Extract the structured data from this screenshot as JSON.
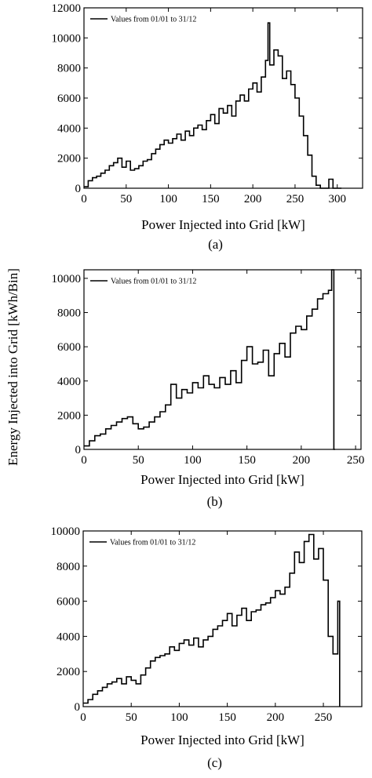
{
  "figure": {
    "ylabel": "Energy Injected into Grid [kWh/Bin]"
  },
  "chart_data": [
    {
      "type": "line",
      "panel": "(a)",
      "caption": "(a)",
      "xlabel": "Power Injected into Grid [kW]",
      "ylabel": "Energy Injected into Grid [kWh/Bin]",
      "legend": "Values from 01/01 to 31/12",
      "legend_position": "top-left",
      "grid": false,
      "xlim": [
        0,
        330
      ],
      "ylim": [
        0,
        12000
      ],
      "xticks": [
        0,
        50,
        100,
        150,
        200,
        250,
        300
      ],
      "yticks": [
        0,
        2000,
        4000,
        6000,
        8000,
        10000,
        12000
      ],
      "x": [
        0,
        5,
        10,
        15,
        20,
        25,
        30,
        35,
        40,
        45,
        50,
        55,
        60,
        65,
        70,
        75,
        80,
        85,
        90,
        95,
        100,
        105,
        110,
        115,
        120,
        125,
        130,
        135,
        140,
        145,
        150,
        155,
        160,
        165,
        170,
        175,
        180,
        185,
        190,
        195,
        200,
        205,
        210,
        215,
        218,
        220,
        225,
        230,
        235,
        240,
        245,
        250,
        255,
        260,
        265,
        270,
        275,
        280,
        285,
        290,
        295,
        300,
        305
      ],
      "values": [
        100,
        500,
        700,
        800,
        1000,
        1200,
        1500,
        1700,
        2000,
        1400,
        1800,
        1200,
        1300,
        1500,
        1800,
        1900,
        2300,
        2600,
        2900,
        3200,
        3000,
        3300,
        3600,
        3200,
        3800,
        3500,
        4000,
        4200,
        3900,
        4500,
        4900,
        4300,
        5300,
        5000,
        5500,
        4800,
        5800,
        6200,
        5800,
        6600,
        7000,
        6400,
        7400,
        8500,
        11000,
        8200,
        9200,
        8800,
        7300,
        7800,
        6900,
        6000,
        4800,
        3500,
        2200,
        800,
        200,
        0,
        0,
        600,
        0,
        0,
        0
      ]
    },
    {
      "type": "line",
      "panel": "(b)",
      "caption": "(b)",
      "xlabel": "Power Injected into Grid [kW]",
      "ylabel": "Energy Injected into Grid [kWh/Bin]",
      "legend": "Values from 01/01 to 31/12",
      "legend_position": "top-left",
      "grid": false,
      "xlim": [
        0,
        255
      ],
      "ylim": [
        0,
        10500
      ],
      "xticks": [
        0,
        50,
        100,
        150,
        200,
        250
      ],
      "yticks": [
        0,
        2000,
        4000,
        6000,
        8000,
        10000
      ],
      "x": [
        0,
        5,
        10,
        15,
        20,
        25,
        30,
        35,
        40,
        45,
        50,
        55,
        60,
        65,
        70,
        75,
        80,
        85,
        90,
        95,
        100,
        105,
        110,
        115,
        120,
        125,
        130,
        135,
        140,
        145,
        150,
        155,
        160,
        165,
        170,
        175,
        180,
        185,
        190,
        195,
        200,
        205,
        210,
        215,
        220,
        225,
        228,
        230,
        231
      ],
      "values": [
        200,
        500,
        800,
        900,
        1200,
        1400,
        1600,
        1800,
        1900,
        1500,
        1200,
        1300,
        1600,
        1900,
        2200,
        2600,
        3800,
        3000,
        3500,
        3300,
        3900,
        3600,
        4300,
        3800,
        3600,
        4200,
        3800,
        4600,
        3900,
        5200,
        6000,
        5000,
        5100,
        5800,
        4300,
        5600,
        6200,
        5400,
        6800,
        7200,
        7000,
        7800,
        8200,
        8800,
        9100,
        9300,
        10500,
        0,
        0
      ]
    },
    {
      "type": "line",
      "panel": "(c)",
      "caption": "(c)",
      "xlabel": "Power Injected into Grid [kW]",
      "ylabel": "Energy Injected into Grid [kWh/Bin]",
      "legend": "Values from 01/01 to 31/12",
      "legend_position": "top-left",
      "grid": false,
      "xlim": [
        0,
        290
      ],
      "ylim": [
        0,
        10000
      ],
      "xticks": [
        0,
        50,
        100,
        150,
        200,
        250
      ],
      "yticks": [
        0,
        2000,
        4000,
        6000,
        8000,
        10000
      ],
      "x": [
        0,
        5,
        10,
        15,
        20,
        25,
        30,
        35,
        40,
        45,
        50,
        55,
        60,
        65,
        70,
        75,
        80,
        85,
        90,
        95,
        100,
        105,
        110,
        115,
        120,
        125,
        130,
        135,
        140,
        145,
        150,
        155,
        160,
        165,
        170,
        175,
        180,
        185,
        190,
        195,
        200,
        205,
        210,
        215,
        220,
        225,
        230,
        235,
        240,
        245,
        250,
        255,
        260,
        265,
        267
      ],
      "values": [
        200,
        400,
        700,
        900,
        1100,
        1300,
        1400,
        1600,
        1300,
        1700,
        1500,
        1300,
        1800,
        2200,
        2600,
        2800,
        2900,
        3000,
        3400,
        3200,
        3600,
        3800,
        3500,
        3900,
        3400,
        3800,
        4000,
        4400,
        4600,
        4900,
        5300,
        4600,
        5200,
        5600,
        4900,
        5400,
        5500,
        5800,
        5900,
        6200,
        6600,
        6400,
        6800,
        7600,
        8800,
        8200,
        9400,
        9800,
        8400,
        9000,
        7200,
        4000,
        3000,
        6000,
        0
      ]
    }
  ]
}
